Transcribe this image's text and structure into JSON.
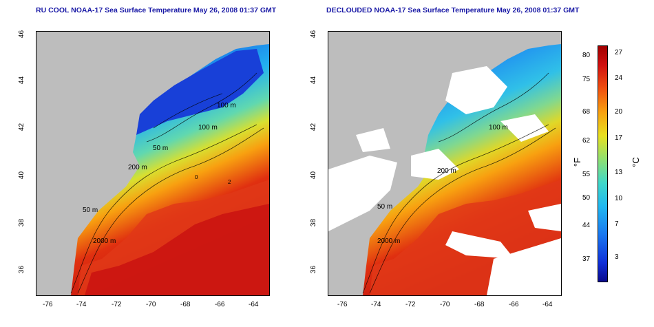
{
  "left_title": "RU COOL NOAA-17 Sea Surface Temperature May 26, 2008 01:37 GMT",
  "right_title": "DECLOUDED NOAA-17 Sea Surface Temperature May 26, 2008 01:37 GMT",
  "x_ticks": [
    "-76",
    "-74",
    "-72",
    "-70",
    "-68",
    "-66",
    "-64"
  ],
  "y_ticks": [
    "46",
    "44",
    "42",
    "40",
    "38",
    "36"
  ],
  "contour_labels": {
    "a": "100 m",
    "b": "100 m",
    "c": "50 m",
    "d": "200 m",
    "e": "50 m",
    "f": "2000 m",
    "g": "0",
    "h": "2"
  },
  "colorbar": {
    "fahrenheit_label": "°F",
    "celsius_label": "°C",
    "fahrenheit_ticks": [
      "80",
      "75",
      "68",
      "62",
      "55",
      "50",
      "44",
      "37"
    ],
    "celsius_ticks": [
      "27",
      "24",
      "20",
      "17",
      "13",
      "10",
      "7",
      "3"
    ]
  },
  "colors": {
    "title": "#1a1aa6",
    "land": "#bdbdbd",
    "cloud": "#ffffff"
  }
}
